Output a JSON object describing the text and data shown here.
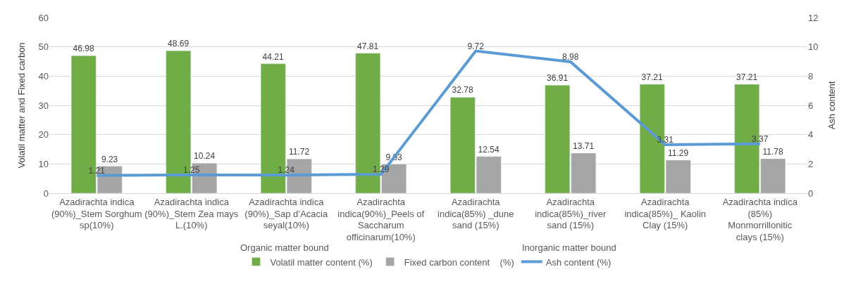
{
  "chart_data": {
    "type": "bar",
    "categories": [
      "Azadirachta indica (90%)_Stem Sorghum sp(10%)",
      "Azadirachta indica (90%)_Stem Zea mays L.(10%)",
      "Azadirachta indica (90%)_Sap d’Acacia seyal(10%)",
      "Azadirachta indica(90%)_Peels of Saccharum officinarum(10%)",
      "Azadirachta indica(85%) _dune sand (15%)",
      "Azadirachta indica(85%)_river sand (15%)",
      "Azadirachta indica(85%)_ Kaolin Clay (15%)",
      "Azadirachta indica (85%) Monmorrillonitic clays (15%)"
    ],
    "series": [
      {
        "name": "Volatil matter content (%)",
        "color": "#70ad47",
        "values": [
          46.98,
          48.69,
          44.21,
          47.81,
          32.78,
          36.91,
          37.21,
          37.21
        ]
      },
      {
        "name": "Fixed carbon content    (%)",
        "color": "#a5a5a5",
        "values": [
          9.23,
          10.24,
          11.72,
          9.93,
          12.54,
          13.71,
          11.29,
          11.78
        ]
      },
      {
        "name": "Ash content (%)",
        "color": "#5b9bd5",
        "type": "line",
        "axis": "y2",
        "values": [
          1.21,
          1.25,
          1.24,
          1.29,
          9.72,
          8.98,
          3.31,
          3.37
        ]
      }
    ],
    "ylabel": "Volatil matter and Fixed carbon",
    "y2label": "Ash content",
    "ylim": [
      0,
      60
    ],
    "yticks": [
      0,
      10,
      20,
      30,
      40,
      50,
      60
    ],
    "y2lim": [
      0,
      12
    ],
    "y2ticks": [
      0,
      2,
      4,
      6,
      8,
      10,
      12
    ],
    "annotations": [
      "Organic matter bound",
      "Inorganic matter bound"
    ],
    "data_labels": true,
    "grid": "y",
    "legend": "bottom",
    "marker": "none"
  }
}
